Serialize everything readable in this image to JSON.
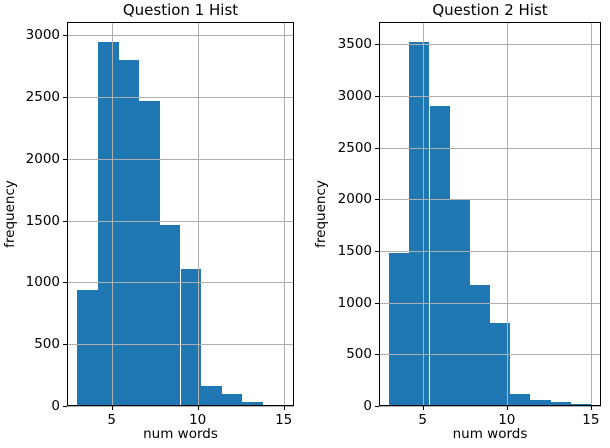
{
  "colors": {
    "bar": "#1f77b4",
    "grid": "#b0b0b0",
    "spine": "#000000",
    "text": "#000000",
    "background": "#ffffff"
  },
  "chart_data": [
    {
      "type": "bar",
      "subtype": "histogram",
      "title": "Question 1 Hist",
      "xlabel": "num words",
      "ylabel": "frequency",
      "bin_edges": [
        3.0,
        4.2,
        5.4,
        6.6,
        7.8,
        9.0,
        10.2,
        11.4,
        12.6,
        13.8,
        15.0
      ],
      "frequencies": [
        940,
        2940,
        2800,
        2470,
        1465,
        1110,
        165,
        100,
        35,
        12
      ],
      "xticks": [
        5,
        10,
        15
      ],
      "yticks": [
        0,
        500,
        1000,
        1500,
        2000,
        2500,
        3000
      ],
      "xlim": [
        2.4,
        15.6
      ],
      "ylim": [
        0,
        3105
      ],
      "grid": true,
      "legend_position": "none"
    },
    {
      "type": "bar",
      "subtype": "histogram",
      "title": "Question 2 Hist",
      "xlabel": "num words",
      "ylabel": "frequency",
      "bin_edges": [
        3.0,
        4.2,
        5.4,
        6.6,
        7.8,
        9.0,
        10.2,
        11.4,
        12.6,
        13.8,
        15.0
      ],
      "frequencies": [
        1480,
        3520,
        2900,
        2000,
        1170,
        800,
        120,
        60,
        35,
        15
      ],
      "xticks": [
        5,
        10,
        15
      ],
      "yticks": [
        0,
        500,
        1000,
        1500,
        2000,
        2500,
        3000,
        3500
      ],
      "xlim": [
        2.4,
        15.6
      ],
      "ylim": [
        0,
        3715
      ],
      "grid": true,
      "legend_position": "none"
    }
  ]
}
